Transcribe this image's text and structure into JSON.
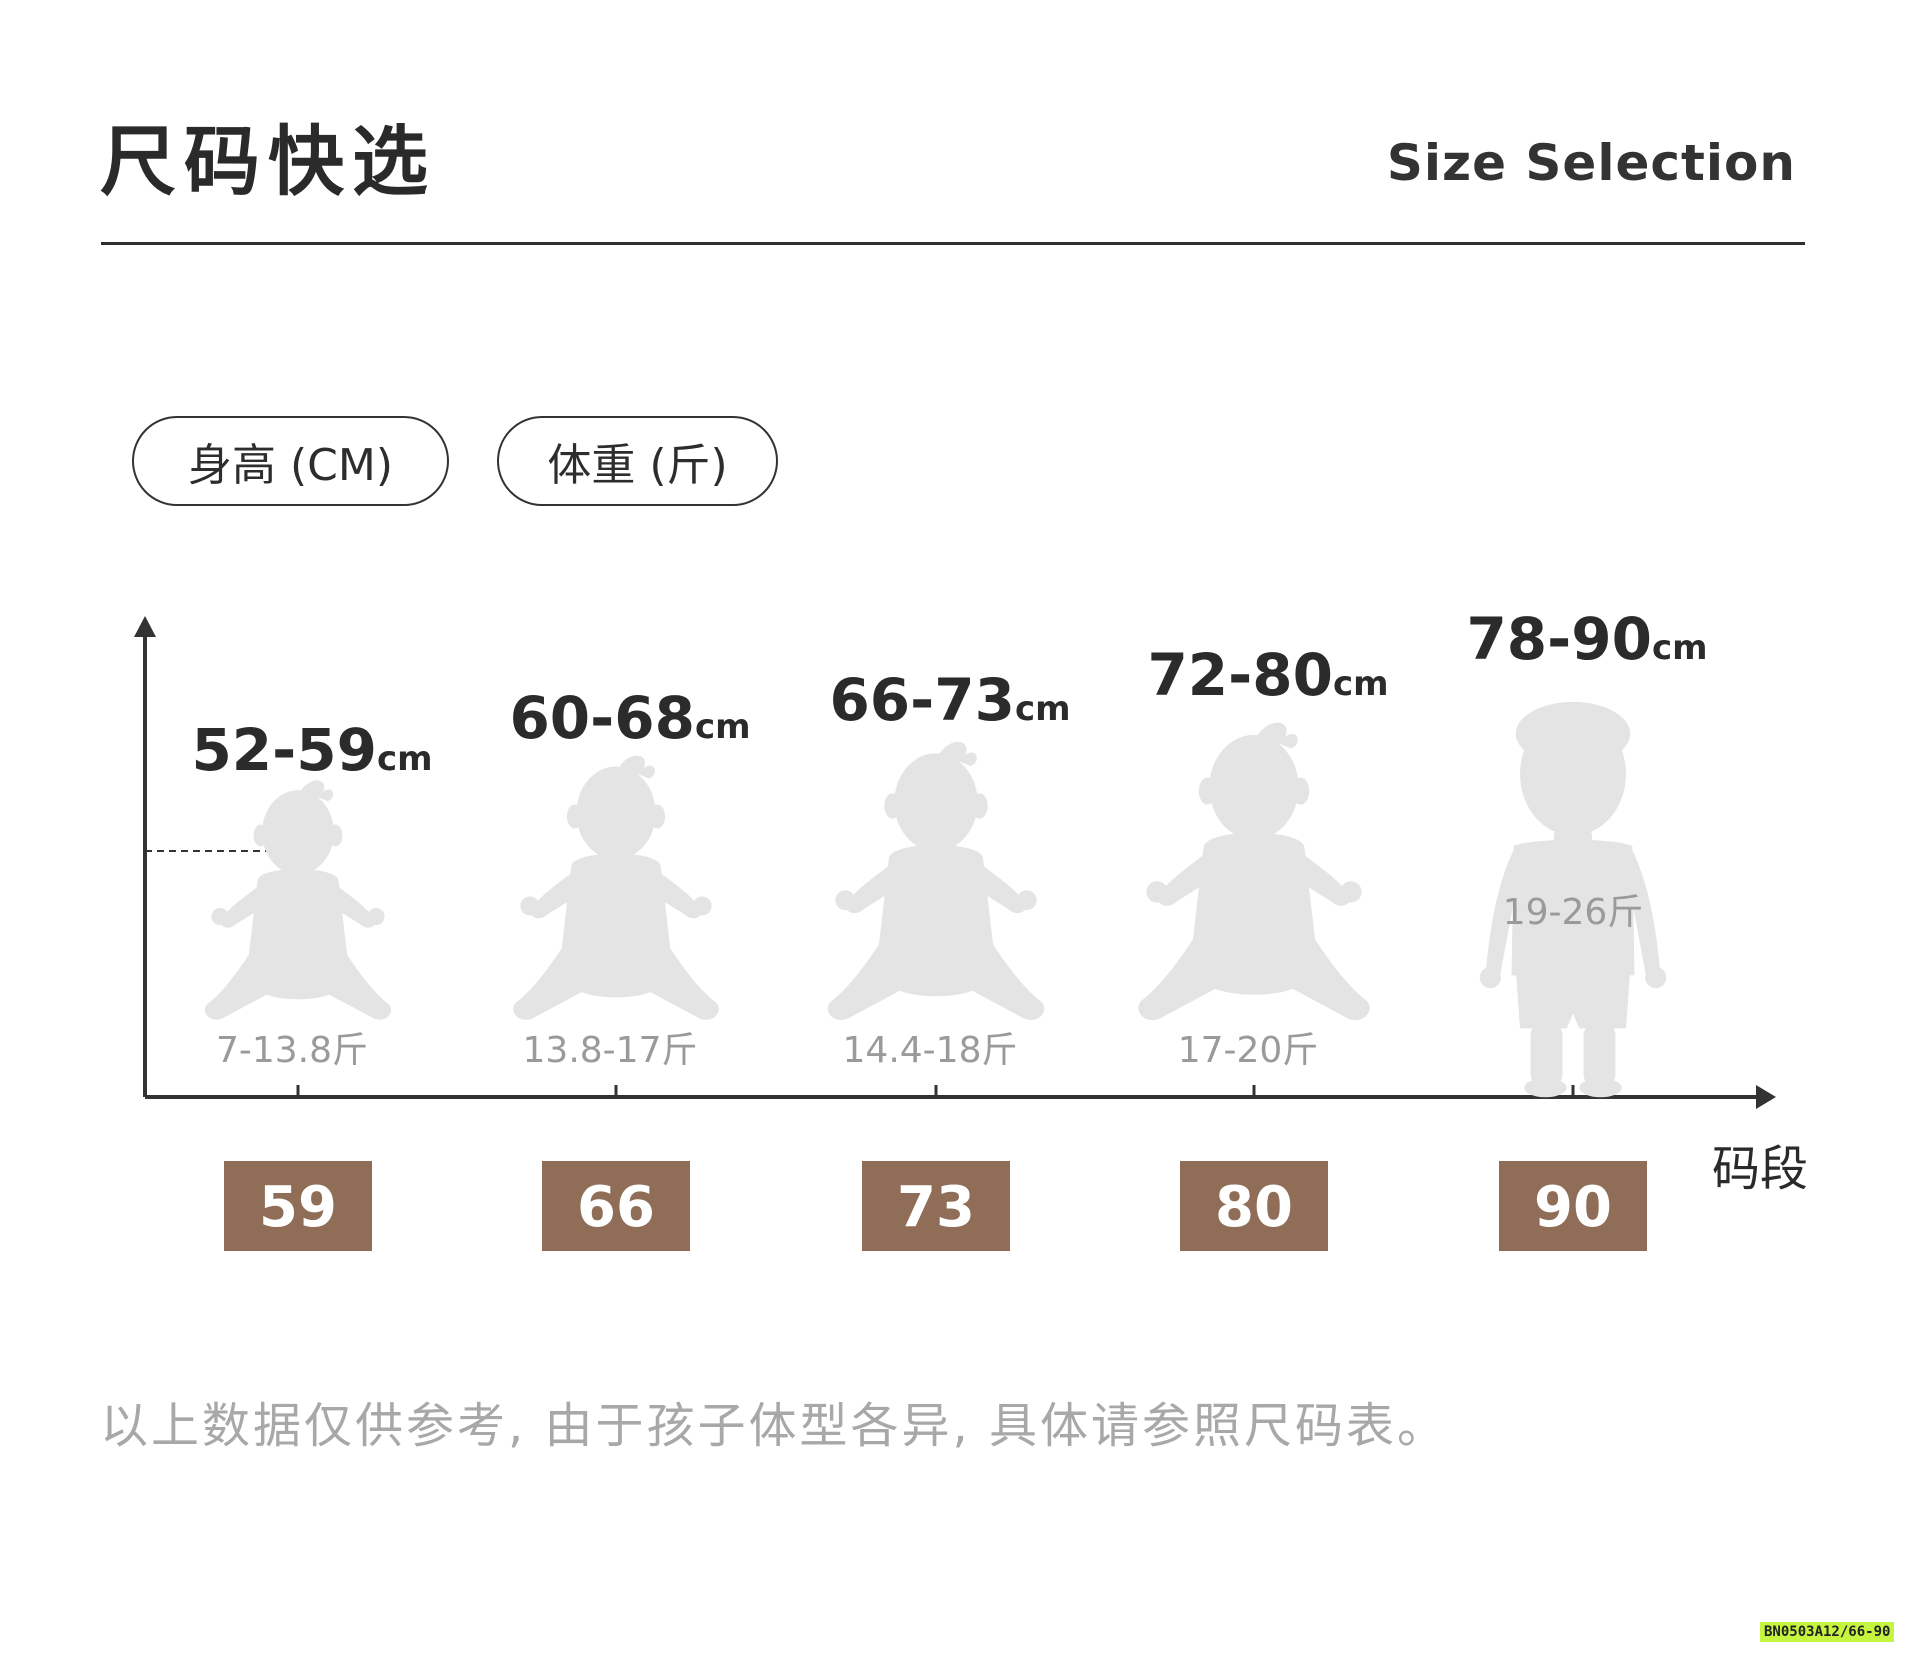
{
  "header": {
    "title_cn": "尺码快选",
    "title_en": "Size Selection"
  },
  "legend": {
    "height_label": "身高 (CM)",
    "weight_label": "体重 (斤)"
  },
  "axis": {
    "x_label": "码段"
  },
  "colors": {
    "badge_bg": "#8f6d57",
    "badge_text": "#ffffff",
    "figure": "#e4e4e4",
    "axis": "#333333"
  },
  "chart_data": {
    "type": "table",
    "sizes": [
      {
        "size": "59",
        "height_range": "52-59",
        "height_unit": "cm",
        "weight_range": "7-13.8斤",
        "height_max": 59,
        "figure": "baby-sitting-icon"
      },
      {
        "size": "66",
        "height_range": "60-68",
        "height_unit": "cm",
        "weight_range": "13.8-17斤",
        "height_max": 68,
        "figure": "baby-sitting-icon"
      },
      {
        "size": "73",
        "height_range": "66-73",
        "height_unit": "cm",
        "weight_range": "14.4-18斤",
        "height_max": 73,
        "figure": "baby-sitting-icon"
      },
      {
        "size": "80",
        "height_range": "72-80",
        "height_unit": "cm",
        "weight_range": "17-20斤",
        "height_max": 80,
        "figure": "baby-sitting-icon"
      },
      {
        "size": "90",
        "height_range": "78-90",
        "height_unit": "cm",
        "weight_range": "19-26斤",
        "height_max": 90,
        "figure": "child-standing-icon"
      }
    ]
  },
  "footer": {
    "note": "以上数据仅供参考, 由于孩子体型各异, 具体请参照尺码表。"
  },
  "product_code": "BN0503A12/66-90"
}
